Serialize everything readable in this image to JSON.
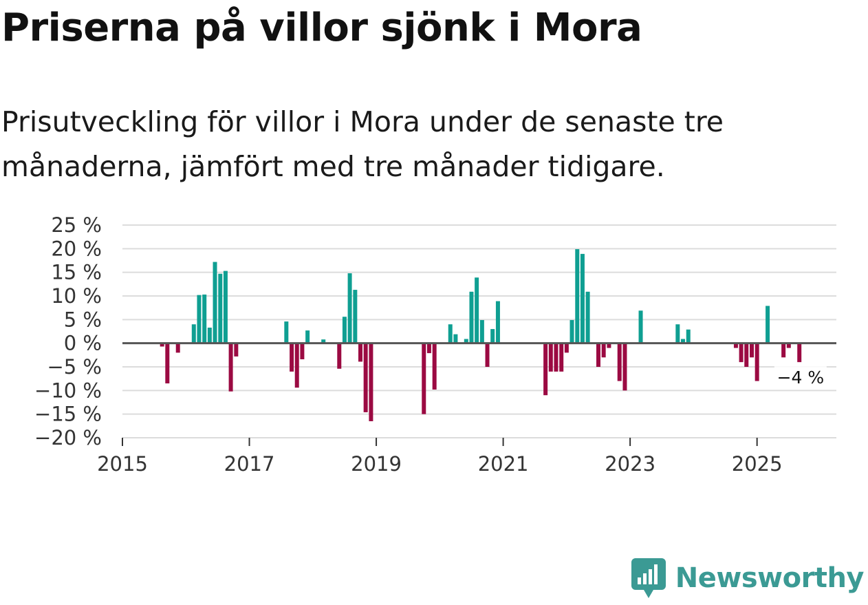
{
  "title": "Priserna på villor sjönk i Mora",
  "subtitle": "Prisutveckling för villor i Mora under de senaste tre månaderna, jämfört med tre månader tidigare.",
  "brand": {
    "name": "Newsworthy",
    "icon": "newsworthy-logo-icon"
  },
  "colors": {
    "positive": "#0f9f92",
    "negative": "#9b0a42",
    "grid": "#dcdcdc",
    "zero": "#555555",
    "brand": "#3b9a94"
  },
  "chart_data": {
    "type": "bar",
    "title": "Priserna på villor sjönk i Mora",
    "xlabel": "",
    "ylabel": "",
    "ylim": [
      -20,
      25
    ],
    "xlim": [
      2015.0,
      2026.25
    ],
    "y_ticks": [
      -20,
      -15,
      -10,
      -5,
      0,
      5,
      10,
      15,
      20,
      25
    ],
    "y_tick_labels": [
      "−20 %",
      "−15 %",
      "−10 %",
      "−5 %",
      "0 %",
      "5 %",
      "10 %",
      "15 %",
      "20 %",
      "25 %"
    ],
    "x_ticks": [
      2015,
      2017,
      2019,
      2021,
      2023,
      2025
    ],
    "x_tick_labels": [
      "2015",
      "2017",
      "2019",
      "2021",
      "2023",
      "2025"
    ],
    "grid": true,
    "annotation": {
      "text": "−4 %",
      "x": 2025.75,
      "y": -4
    },
    "series": [
      {
        "name": "Prisutveckling",
        "points": [
          {
            "x": 2015.625,
            "y": -0.7
          },
          {
            "x": 2015.708,
            "y": -8.5
          },
          {
            "x": 2015.875,
            "y": -2.0
          },
          {
            "x": 2016.125,
            "y": 4.0
          },
          {
            "x": 2016.208,
            "y": 10.2
          },
          {
            "x": 2016.292,
            "y": 10.3
          },
          {
            "x": 2016.375,
            "y": 3.3
          },
          {
            "x": 2016.458,
            "y": 17.2
          },
          {
            "x": 2016.542,
            "y": 14.7
          },
          {
            "x": 2016.625,
            "y": 15.3
          },
          {
            "x": 2016.708,
            "y": -10.2
          },
          {
            "x": 2016.792,
            "y": -2.8
          },
          {
            "x": 2017.583,
            "y": 4.6
          },
          {
            "x": 2017.667,
            "y": -6.0
          },
          {
            "x": 2017.75,
            "y": -9.4
          },
          {
            "x": 2017.833,
            "y": -3.4
          },
          {
            "x": 2017.917,
            "y": 2.7
          },
          {
            "x": 2018.167,
            "y": 0.8
          },
          {
            "x": 2018.417,
            "y": -5.4
          },
          {
            "x": 2018.5,
            "y": 5.6
          },
          {
            "x": 2018.583,
            "y": 14.8
          },
          {
            "x": 2018.667,
            "y": 11.3
          },
          {
            "x": 2018.75,
            "y": -3.9
          },
          {
            "x": 2018.833,
            "y": -14.6
          },
          {
            "x": 2018.917,
            "y": -16.5
          },
          {
            "x": 2019.75,
            "y": -15.0
          },
          {
            "x": 2019.833,
            "y": -2.1
          },
          {
            "x": 2019.917,
            "y": -9.8
          },
          {
            "x": 2020.167,
            "y": 4.0
          },
          {
            "x": 2020.25,
            "y": 1.9
          },
          {
            "x": 2020.417,
            "y": 0.9
          },
          {
            "x": 2020.5,
            "y": 10.9
          },
          {
            "x": 2020.583,
            "y": 13.9
          },
          {
            "x": 2020.667,
            "y": 4.9
          },
          {
            "x": 2020.75,
            "y": -5.0
          },
          {
            "x": 2020.833,
            "y": 3.0
          },
          {
            "x": 2020.917,
            "y": 8.9
          },
          {
            "x": 2021.667,
            "y": -11.0
          },
          {
            "x": 2021.75,
            "y": -6.0
          },
          {
            "x": 2021.833,
            "y": -6.0
          },
          {
            "x": 2021.917,
            "y": -6.0
          },
          {
            "x": 2022.0,
            "y": -2.0
          },
          {
            "x": 2022.083,
            "y": 4.9
          },
          {
            "x": 2022.167,
            "y": 19.9
          },
          {
            "x": 2022.25,
            "y": 18.9
          },
          {
            "x": 2022.333,
            "y": 10.9
          },
          {
            "x": 2022.5,
            "y": -5.0
          },
          {
            "x": 2022.583,
            "y": -3.0
          },
          {
            "x": 2022.667,
            "y": -1.0
          },
          {
            "x": 2022.833,
            "y": -8.0
          },
          {
            "x": 2022.917,
            "y": -10.0
          },
          {
            "x": 2023.167,
            "y": 6.9
          },
          {
            "x": 2023.75,
            "y": 4.0
          },
          {
            "x": 2023.833,
            "y": 0.9
          },
          {
            "x": 2023.917,
            "y": 2.9
          },
          {
            "x": 2024.667,
            "y": -1.0
          },
          {
            "x": 2024.75,
            "y": -4.0
          },
          {
            "x": 2024.833,
            "y": -5.0
          },
          {
            "x": 2024.917,
            "y": -3.0
          },
          {
            "x": 2025.0,
            "y": -8.0
          },
          {
            "x": 2025.167,
            "y": 7.9
          },
          {
            "x": 2025.417,
            "y": -3.0
          },
          {
            "x": 2025.5,
            "y": -1.0
          },
          {
            "x": 2025.667,
            "y": -4.0
          }
        ]
      }
    ]
  }
}
